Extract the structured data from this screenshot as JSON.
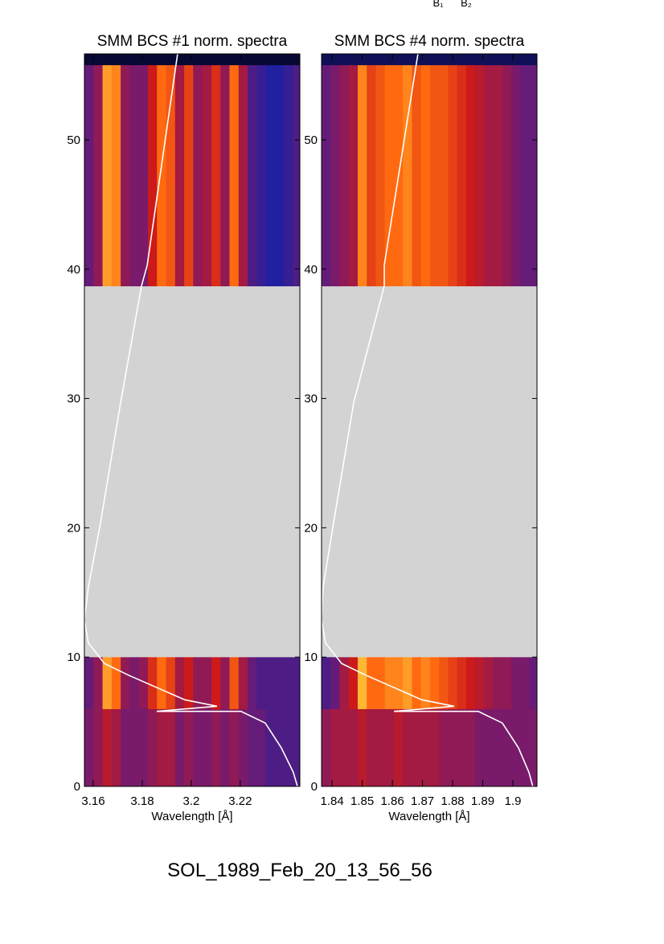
{
  "figure_title": "SOL_1989_Feb_20_13_56_56",
  "annotations": [
    "B₁",
    "B₂"
  ],
  "chart_data": [
    {
      "type": "spectrogram",
      "title": "SMM BCS #1 norm. spectra",
      "xlabel": "Wavelength [Å]",
      "xlim": [
        3.1564,
        3.2443
      ],
      "xticks": [
        3.16,
        3.18,
        3.2,
        3.22
      ],
      "ylim": [
        0,
        56.65
      ],
      "yticks": [
        0,
        10,
        20,
        30,
        40,
        50
      ],
      "gap_color": "#d3d3d3",
      "colormap": [
        "#000010",
        "#2020a0",
        "#7a1a6a",
        "#cc1a1a",
        "#ff6a10",
        "#ffd040"
      ],
      "xbins": [
        3.1564,
        3.1601,
        3.1638,
        3.1675,
        3.1712,
        3.1749,
        3.1786,
        3.1823,
        3.186,
        3.1897,
        3.1934,
        3.1971,
        3.2008,
        3.2045,
        3.2082,
        3.2119,
        3.2156,
        3.2193,
        3.223,
        3.2267,
        3.2304,
        3.2341,
        3.2378,
        3.2415,
        3.2452
      ],
      "ybins": [
        0,
        6,
        10,
        38.7,
        55.8,
        56.65
      ],
      "z": [
        [
          0.4,
          0.45,
          0.55,
          0.5,
          0.4,
          0.4,
          0.4,
          0.45,
          0.5,
          0.5,
          0.4,
          0.45,
          0.4,
          0.4,
          0.45,
          0.4,
          0.45,
          0.4,
          0.35,
          0.35,
          0.3,
          0.3,
          0.3,
          0.3
        ],
        [
          0.35,
          0.45,
          0.9,
          0.8,
          0.45,
          0.4,
          0.45,
          0.65,
          0.8,
          0.7,
          0.5,
          0.6,
          0.45,
          0.45,
          0.6,
          0.45,
          0.75,
          0.5,
          0.35,
          0.3,
          0.3,
          0.3,
          0.3,
          0.3
        ],
        null,
        [
          0.35,
          0.45,
          0.9,
          0.85,
          0.45,
          0.4,
          0.4,
          0.6,
          0.8,
          0.75,
          0.5,
          0.7,
          0.45,
          0.5,
          0.65,
          0.45,
          0.8,
          0.5,
          0.3,
          0.25,
          0.2,
          0.2,
          0.25,
          0.3
        ],
        [
          0.05,
          0.05,
          0.05,
          0.05,
          0.05,
          0.05,
          0.05,
          0.05,
          0.05,
          0.05,
          0.05,
          0.05,
          0.05,
          0.05,
          0.05,
          0.05,
          0.05,
          0.05,
          0.05,
          0.05,
          0.05,
          0.05,
          0.05,
          0.05
        ]
      ],
      "series": [
        {
          "color": "#ffffff",
          "x": [
            3.1944,
            3.182,
            3.1797,
            3.1712,
            3.163,
            3.158,
            3.1564,
            3.158,
            3.1646,
            3.1744,
            3.1974,
            3.2105,
            3.1859,
            3.2203,
            3.2302,
            3.2367,
            3.2416,
            3.2433
          ],
          "values": [
            56.65,
            40.3,
            38.7,
            29.7,
            20.4,
            15.4,
            12.9,
            11.1,
            9.5,
            8.6,
            6.7,
            6.2,
            5.8,
            5.8,
            4.9,
            3.0,
            1.1,
            0
          ]
        }
      ]
    },
    {
      "type": "spectrogram",
      "title": "SMM BCS #4 norm. spectra",
      "xlabel": "Wavelength [Å]",
      "xlim": [
        1.8365,
        1.908
      ],
      "xticks": [
        1.84,
        1.85,
        1.86,
        1.87,
        1.88,
        1.89,
        1.9
      ],
      "ylim": [
        0,
        56.65
      ],
      "yticks": [
        0,
        10,
        20,
        30,
        40,
        50
      ],
      "gap_color": "#d3d3d3",
      "colormap": [
        "#000010",
        "#2020a0",
        "#7a1a6a",
        "#cc1a1a",
        "#ff6a10",
        "#ffd040"
      ],
      "xbins": [
        1.8365,
        1.8395,
        1.8425,
        1.8455,
        1.8485,
        1.8515,
        1.8545,
        1.8575,
        1.8605,
        1.8635,
        1.8665,
        1.8695,
        1.8725,
        1.8755,
        1.8785,
        1.8815,
        1.8845,
        1.8875,
        1.8905,
        1.8935,
        1.8965,
        1.8995,
        1.9025,
        1.9055,
        1.9085
      ],
      "ybins": [
        0,
        6,
        10,
        38.7,
        55.8,
        56.65
      ],
      "z": [
        [
          0.45,
          0.5,
          0.5,
          0.5,
          0.55,
          0.5,
          0.5,
          0.5,
          0.55,
          0.5,
          0.5,
          0.5,
          0.5,
          0.45,
          0.45,
          0.45,
          0.45,
          0.4,
          0.4,
          0.4,
          0.4,
          0.4,
          0.4,
          0.4
        ],
        [
          0.3,
          0.35,
          0.5,
          0.6,
          0.95,
          0.8,
          0.8,
          0.85,
          0.85,
          0.9,
          0.8,
          0.85,
          0.8,
          0.75,
          0.7,
          0.65,
          0.6,
          0.55,
          0.5,
          0.45,
          0.45,
          0.4,
          0.4,
          0.35
        ],
        null,
        [
          0.35,
          0.4,
          0.45,
          0.5,
          0.85,
          0.7,
          0.75,
          0.8,
          0.8,
          0.85,
          0.75,
          0.8,
          0.75,
          0.75,
          0.7,
          0.65,
          0.6,
          0.55,
          0.5,
          0.5,
          0.45,
          0.4,
          0.35,
          0.35
        ],
        [
          0.1,
          0.1,
          0.1,
          0.1,
          0.1,
          0.1,
          0.1,
          0.1,
          0.1,
          0.1,
          0.1,
          0.1,
          0.1,
          0.1,
          0.1,
          0.1,
          0.1,
          0.1,
          0.1,
          0.1,
          0.1,
          0.1,
          0.1,
          0.1
        ]
      ],
      "series": [
        {
          "color": "#ffffff",
          "x": [
            1.8685,
            1.8573,
            1.8573,
            1.8472,
            1.8405,
            1.837,
            1.8365,
            1.8378,
            1.8432,
            1.8512,
            1.8698,
            1.8805,
            1.8605,
            1.8885,
            1.8965,
            1.9018,
            1.9053,
            1.9066
          ],
          "values": [
            56.65,
            40.3,
            38.7,
            29.7,
            20.4,
            15.4,
            12.9,
            11.1,
            9.5,
            8.6,
            6.7,
            6.2,
            5.8,
            5.8,
            4.9,
            3.0,
            1.1,
            0
          ]
        }
      ]
    }
  ]
}
